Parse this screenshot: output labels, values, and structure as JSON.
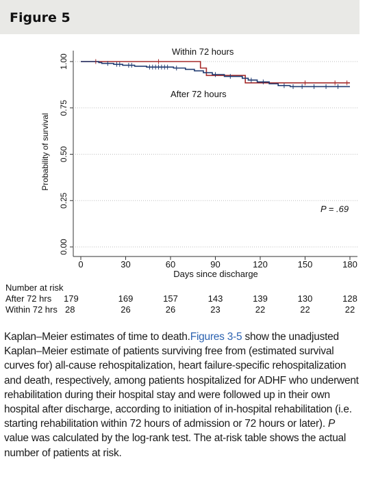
{
  "figure": {
    "label": "Figure 5"
  },
  "chart_data": {
    "type": "line",
    "xlabel": "Days since discharge",
    "ylabel": "Probability of survival",
    "xlim": [
      0,
      180
    ],
    "ylim": [
      0,
      1
    ],
    "x_ticks": [
      0,
      30,
      60,
      90,
      120,
      150,
      180
    ],
    "y_ticks": [
      "0.00",
      "0.25",
      "0.50",
      "0.75",
      "1.00"
    ],
    "grid": true,
    "annotations": {
      "p_value": "P = .69"
    },
    "series": [
      {
        "name": "Within 72 hours",
        "color": "#a52a2a",
        "steps": [
          [
            0,
            1.0
          ],
          [
            80,
            1.0
          ],
          [
            80,
            0.965
          ],
          [
            84,
            0.965
          ],
          [
            84,
            0.925
          ],
          [
            110,
            0.925
          ],
          [
            110,
            0.885
          ],
          [
            180,
            0.885
          ]
        ]
      },
      {
        "name": "After 72 hours",
        "color": "#1f3a70",
        "steps": [
          [
            0,
            1.0
          ],
          [
            12,
            1.0
          ],
          [
            12,
            0.995
          ],
          [
            14,
            0.995
          ],
          [
            14,
            0.99
          ],
          [
            22,
            0.99
          ],
          [
            22,
            0.985
          ],
          [
            28,
            0.985
          ],
          [
            28,
            0.98
          ],
          [
            36,
            0.98
          ],
          [
            36,
            0.975
          ],
          [
            44,
            0.975
          ],
          [
            44,
            0.97
          ],
          [
            62,
            0.97
          ],
          [
            62,
            0.965
          ],
          [
            70,
            0.965
          ],
          [
            70,
            0.958
          ],
          [
            76,
            0.958
          ],
          [
            76,
            0.95
          ],
          [
            82,
            0.95
          ],
          [
            82,
            0.94
          ],
          [
            88,
            0.94
          ],
          [
            88,
            0.93
          ],
          [
            96,
            0.93
          ],
          [
            96,
            0.92
          ],
          [
            108,
            0.92
          ],
          [
            108,
            0.91
          ],
          [
            112,
            0.91
          ],
          [
            112,
            0.9
          ],
          [
            118,
            0.9
          ],
          [
            118,
            0.89
          ],
          [
            126,
            0.89
          ],
          [
            126,
            0.88
          ],
          [
            132,
            0.88
          ],
          [
            132,
            0.87
          ],
          [
            140,
            0.87
          ],
          [
            140,
            0.865
          ],
          [
            180,
            0.865
          ]
        ]
      }
    ],
    "censor_marks": {
      "after": [
        [
          18,
          0.99
        ],
        [
          24,
          0.985
        ],
        [
          26,
          0.985
        ],
        [
          32,
          0.98
        ],
        [
          34,
          0.98
        ],
        [
          46,
          0.97
        ],
        [
          48,
          0.97
        ],
        [
          50,
          0.97
        ],
        [
          52,
          0.97
        ],
        [
          54,
          0.97
        ],
        [
          56,
          0.97
        ],
        [
          58,
          0.97
        ],
        [
          64,
          0.965
        ],
        [
          90,
          0.93
        ],
        [
          100,
          0.92
        ],
        [
          114,
          0.9
        ],
        [
          122,
          0.89
        ],
        [
          136,
          0.87
        ],
        [
          142,
          0.865
        ],
        [
          148,
          0.865
        ],
        [
          156,
          0.865
        ],
        [
          164,
          0.865
        ],
        [
          172,
          0.865
        ]
      ],
      "within": [
        [
          10,
          1.0
        ],
        [
          52,
          1.0
        ],
        [
          150,
          0.885
        ],
        [
          170,
          0.885
        ],
        [
          178,
          0.885
        ]
      ]
    }
  },
  "risk_table": {
    "title": "Number at risk",
    "rows": [
      {
        "label": "After 72 hrs",
        "values": [
          "179",
          "169",
          "157",
          "143",
          "139",
          "130",
          "128"
        ]
      },
      {
        "label": "Within 72 hrs",
        "values": [
          "28",
          "26",
          "26",
          "23",
          "22",
          "22",
          "22"
        ]
      }
    ]
  },
  "caption": {
    "lead": "Kaplan–Meier estimates of time to death.",
    "ref": "Figures 3-5",
    "text1": " show the unadjusted Kaplan–Meier estimate of patients surviving free from (estimated survival curves for) all-cause rehospitalization, heart failure-specific rehospitalization and death, respectively, among patients hospitalized for ADHF who underwent rehabilitation during their hospital stay and were followed up in their own hospital after discharge, according to initiation of in-hospital rehabilitation (i.e. starting rehabilitation within 72 hours of admission or 72 hours or later). ",
    "p": "P",
    "text2": " value was calculated by the log-rank test. The at-risk table shows the actual number of patients at risk."
  }
}
